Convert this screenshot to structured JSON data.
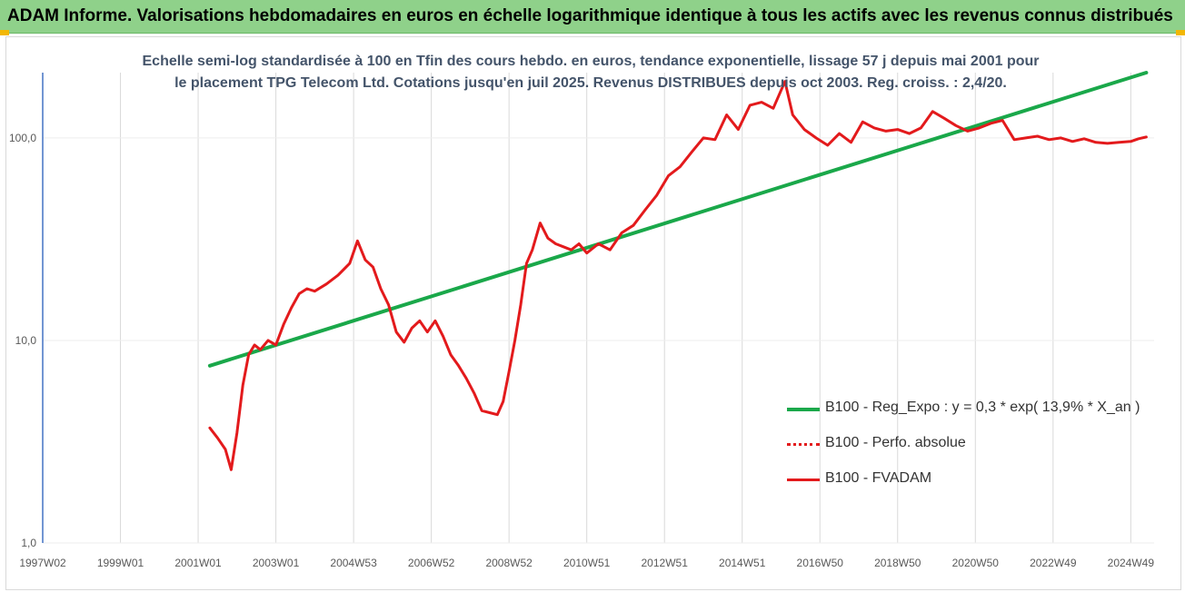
{
  "header": {
    "title": "ADAM Informe. Valorisations hebdomadaires en euros en échelle logarithmique identique à tous les actifs avec les revenus connus distribués"
  },
  "chart_data": {
    "type": "line",
    "title": "Echelle semi-log standardisée à 100 en Tfin des cours hebdo. en euros, tendance exponentielle, lissage 57 j depuis mai 2001 pour le placement TPG Telecom Ltd. Cotations jusqu'en juil 2025. Revenus DISTRIBUES depuis oct 2003. Reg. croiss. : 2,4/20.",
    "y_scale": "log",
    "ylim": [
      1,
      210
    ],
    "y_ticks": [
      "1,0",
      "10,0",
      "100,0"
    ],
    "y_tick_values": [
      1,
      10,
      100
    ],
    "x_tick_labels": [
      "1997W02",
      "1999W01",
      "2001W01",
      "2003W01",
      "2004W53",
      "2006W52",
      "2008W52",
      "2010W51",
      "2012W51",
      "2014W51",
      "2016W50",
      "2018W50",
      "2020W50",
      "2022W49",
      "2024W49"
    ],
    "x_tick_years": [
      1997.0,
      1999.0,
      2001.0,
      2003.0,
      2005.0,
      2007.0,
      2009.0,
      2011.0,
      2013.0,
      2015.0,
      2017.0,
      2019.0,
      2021.0,
      2023.0,
      2025.0
    ],
    "xlim": [
      1997.0,
      2025.6
    ],
    "grid": "vertical",
    "legend_position": "bottom-right",
    "series": [
      {
        "name": "B100 - Reg_Expo : y = 0,3 * exp( 13,9% *  X_an )",
        "color": "#1aa84a",
        "style": "solid-thick",
        "x": [
          2001.3,
          2025.4
        ],
        "y": [
          7.5,
          210
        ]
      },
      {
        "name": "B100 - Perfo. absolue",
        "color": "#e31a1c",
        "style": "dotted",
        "x": [],
        "y": []
      },
      {
        "name": "B100 - FVADAM",
        "color": "#e31a1c",
        "style": "solid",
        "x": [
          2001.3,
          2001.5,
          2001.7,
          2001.85,
          2002.0,
          2002.15,
          2002.3,
          2002.45,
          2002.6,
          2002.8,
          2003.0,
          2003.2,
          2003.4,
          2003.6,
          2003.8,
          2004.0,
          2004.3,
          2004.6,
          2004.9,
          2005.1,
          2005.3,
          2005.5,
          2005.7,
          2005.9,
          2006.1,
          2006.3,
          2006.5,
          2006.7,
          2006.9,
          2007.1,
          2007.3,
          2007.5,
          2007.7,
          2007.9,
          2008.1,
          2008.3,
          2008.5,
          2008.7,
          2008.85,
          2009.0,
          2009.15,
          2009.3,
          2009.45,
          2009.6,
          2009.8,
          2010.0,
          2010.2,
          2010.4,
          2010.6,
          2010.8,
          2011.0,
          2011.3,
          2011.6,
          2011.9,
          2012.2,
          2012.5,
          2012.8,
          2013.1,
          2013.4,
          2013.7,
          2014.0,
          2014.3,
          2014.6,
          2014.9,
          2015.2,
          2015.5,
          2015.8,
          2016.1,
          2016.3,
          2016.6,
          2016.9,
          2017.2,
          2017.5,
          2017.8,
          2018.1,
          2018.4,
          2018.7,
          2019.0,
          2019.3,
          2019.6,
          2019.9,
          2020.2,
          2020.5,
          2020.8,
          2021.1,
          2021.4,
          2021.7,
          2022.0,
          2022.3,
          2022.6,
          2022.9,
          2023.2,
          2023.5,
          2023.8,
          2024.1,
          2024.4,
          2024.7,
          2025.0,
          2025.2,
          2025.4
        ],
        "y": [
          3.7,
          3.3,
          2.9,
          2.3,
          3.5,
          6.0,
          8.5,
          9.5,
          9.0,
          10.0,
          9.5,
          12.0,
          14.5,
          17.0,
          18.0,
          17.5,
          19.0,
          21.0,
          24.0,
          31.0,
          25.0,
          23.0,
          18.0,
          15.0,
          11.0,
          9.8,
          11.5,
          12.5,
          11.0,
          12.5,
          10.5,
          8.5,
          7.5,
          6.5,
          5.5,
          4.5,
          4.4,
          4.3,
          5.0,
          7.0,
          10.0,
          15.0,
          24.0,
          28.0,
          38.0,
          32.0,
          30.0,
          29.0,
          28.0,
          30.0,
          27.0,
          30.0,
          28.0,
          34.0,
          37.0,
          44.0,
          52.0,
          65.0,
          72.0,
          85.0,
          100.0,
          98.0,
          130.0,
          110.0,
          145.0,
          150.0,
          140.0,
          190.0,
          130.0,
          110.0,
          100.0,
          92.0,
          105.0,
          95.0,
          120.0,
          112.0,
          108.0,
          110.0,
          105.0,
          112.0,
          135.0,
          125.0,
          115.0,
          108.0,
          112.0,
          118.0,
          122.0,
          98.0,
          100.0,
          102.0,
          98.0,
          100.0,
          96.0,
          99.0,
          95.0,
          94.0,
          95.0,
          96.0,
          99.0,
          101.0
        ]
      }
    ]
  }
}
